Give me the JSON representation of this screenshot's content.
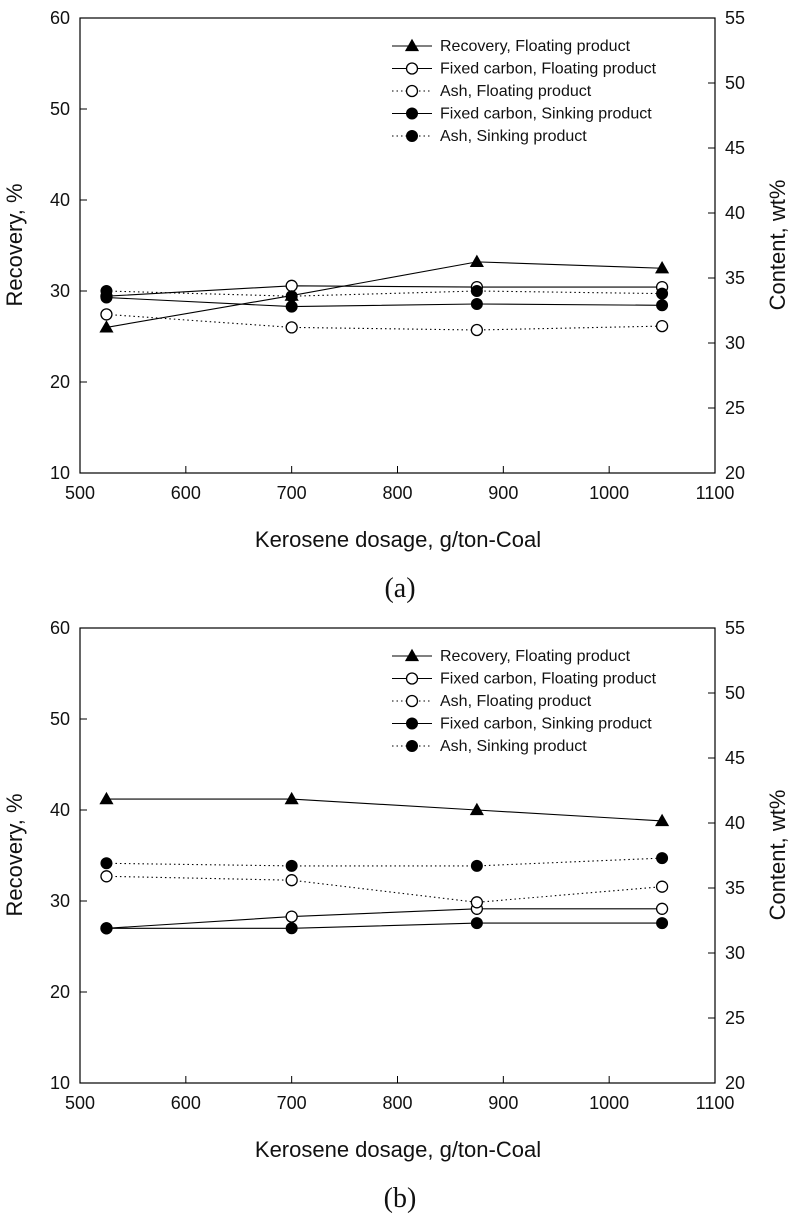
{
  "chart_data": [
    {
      "type": "line",
      "panel_label": "(a)",
      "xlabel": "Kerosene dosage, g/ton-Coal",
      "ylabel": "Recovery, %",
      "y2label": "Content, wt%",
      "xlim": [
        500,
        1100
      ],
      "ylim": [
        10,
        60
      ],
      "y2lim": [
        20,
        55
      ],
      "xticks": [
        "500",
        "600",
        "700",
        "800",
        "900",
        "1000",
        "1100"
      ],
      "yticks": [
        "10",
        "20",
        "30",
        "40",
        "50",
        "60"
      ],
      "y2ticks": [
        "20",
        "25",
        "30",
        "35",
        "40",
        "45",
        "50",
        "55"
      ],
      "legend_position": "top-right",
      "x": [
        525,
        700,
        875,
        1050
      ],
      "series": [
        {
          "name": "Recovery, Floating product",
          "axis": "left",
          "marker": "triangle",
          "line": "solid",
          "values": [
            26.0,
            29.5,
            33.2,
            32.5
          ]
        },
        {
          "name": "Fixed carbon, Floating product",
          "axis": "right",
          "marker": "open-circle",
          "line": "solid",
          "values": [
            33.6,
            34.4,
            34.3,
            34.3
          ]
        },
        {
          "name": "Ash, Floating product",
          "axis": "right",
          "marker": "open-circle",
          "line": "dotted",
          "values": [
            32.2,
            31.2,
            31.0,
            31.3
          ]
        },
        {
          "name": "Fixed carbon, Sinking product",
          "axis": "right",
          "marker": "filled-circle",
          "line": "solid",
          "values": [
            33.5,
            32.8,
            33.0,
            32.9
          ]
        },
        {
          "name": "Ash, Sinking product",
          "axis": "right",
          "marker": "filled-circle",
          "line": "dotted",
          "values": [
            34.0,
            33.6,
            34.0,
            33.8
          ]
        }
      ]
    },
    {
      "type": "line",
      "panel_label": "(b)",
      "xlabel": "Kerosene dosage, g/ton-Coal",
      "ylabel": "Recovery, %",
      "y2label": "Content, wt%",
      "xlim": [
        500,
        1100
      ],
      "ylim": [
        10,
        60
      ],
      "y2lim": [
        20,
        55
      ],
      "xticks": [
        "500",
        "600",
        "700",
        "800",
        "900",
        "1000",
        "1100"
      ],
      "yticks": [
        "10",
        "20",
        "30",
        "40",
        "50",
        "60"
      ],
      "y2ticks": [
        "20",
        "25",
        "30",
        "35",
        "40",
        "45",
        "50",
        "55"
      ],
      "legend_position": "top-right",
      "x": [
        525,
        700,
        875,
        1050
      ],
      "series": [
        {
          "name": "Recovery, Floating product",
          "axis": "left",
          "marker": "triangle",
          "line": "solid",
          "values": [
            41.2,
            41.2,
            40.0,
            38.8
          ]
        },
        {
          "name": "Fixed carbon, Floating product",
          "axis": "right",
          "marker": "open-circle",
          "line": "solid",
          "values": [
            31.9,
            32.8,
            33.4,
            33.4
          ]
        },
        {
          "name": "Ash, Floating product",
          "axis": "right",
          "marker": "open-circle",
          "line": "dotted",
          "values": [
            35.9,
            35.6,
            33.9,
            35.1
          ]
        },
        {
          "name": "Fixed carbon, Sinking product",
          "axis": "right",
          "marker": "filled-circle",
          "line": "solid",
          "values": [
            31.9,
            31.9,
            32.3,
            32.3
          ]
        },
        {
          "name": "Ash, Sinking product",
          "axis": "right",
          "marker": "filled-circle",
          "line": "dotted",
          "values": [
            36.9,
            36.7,
            36.7,
            37.3
          ]
        }
      ]
    }
  ]
}
